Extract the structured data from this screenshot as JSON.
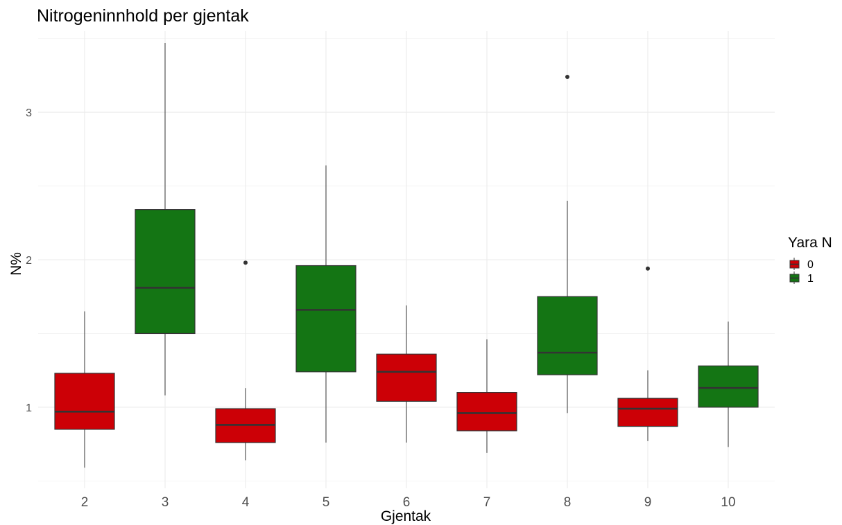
{
  "chart_data": {
    "type": "boxplot",
    "title": "Nitrogeninnhold per gjentak",
    "xlabel": "Gjentak",
    "ylabel": "N%",
    "categories": [
      "2",
      "3",
      "4",
      "5",
      "6",
      "7",
      "8",
      "9",
      "10"
    ],
    "ylim": [
      0.45,
      3.55
    ],
    "yticks": [
      1,
      2,
      3
    ],
    "ytick_labels": [
      "1",
      "2",
      "3"
    ],
    "grid": true,
    "legend": {
      "title": "Yara N",
      "placement": "right",
      "entries": [
        {
          "label": "0",
          "color": "#cc0006"
        },
        {
          "label": "1",
          "color": "#147514"
        }
      ]
    },
    "boxes": [
      {
        "x": "2",
        "group": "0",
        "whisker_low": 0.59,
        "q1": 0.85,
        "median": 0.97,
        "q3": 1.23,
        "whisker_high": 1.65,
        "outliers": []
      },
      {
        "x": "3",
        "group": "1",
        "whisker_low": 1.08,
        "q1": 1.5,
        "median": 1.81,
        "q3": 2.34,
        "whisker_high": 3.47,
        "outliers": []
      },
      {
        "x": "4",
        "group": "0",
        "whisker_low": 0.64,
        "q1": 0.76,
        "median": 0.88,
        "q3": 0.99,
        "whisker_high": 1.13,
        "outliers": [
          1.98
        ]
      },
      {
        "x": "5",
        "group": "1",
        "whisker_low": 0.76,
        "q1": 1.24,
        "median": 1.66,
        "q3": 1.96,
        "whisker_high": 2.64,
        "outliers": []
      },
      {
        "x": "6",
        "group": "0",
        "whisker_low": 0.76,
        "q1": 1.04,
        "median": 1.24,
        "q3": 1.36,
        "whisker_high": 1.69,
        "outliers": []
      },
      {
        "x": "7",
        "group": "0",
        "whisker_low": 0.69,
        "q1": 0.84,
        "median": 0.96,
        "q3": 1.1,
        "whisker_high": 1.46,
        "outliers": []
      },
      {
        "x": "8",
        "group": "1",
        "whisker_low": 0.96,
        "q1": 1.22,
        "median": 1.37,
        "q3": 1.75,
        "whisker_high": 2.4,
        "outliers": [
          3.24
        ]
      },
      {
        "x": "9",
        "group": "0",
        "whisker_low": 0.77,
        "q1": 0.87,
        "median": 0.99,
        "q3": 1.06,
        "whisker_high": 1.25,
        "outliers": [
          1.94
        ]
      },
      {
        "x": "10",
        "group": "1",
        "whisker_low": 0.73,
        "q1": 1.0,
        "median": 1.13,
        "q3": 1.28,
        "whisker_high": 1.58,
        "outliers": []
      }
    ]
  }
}
